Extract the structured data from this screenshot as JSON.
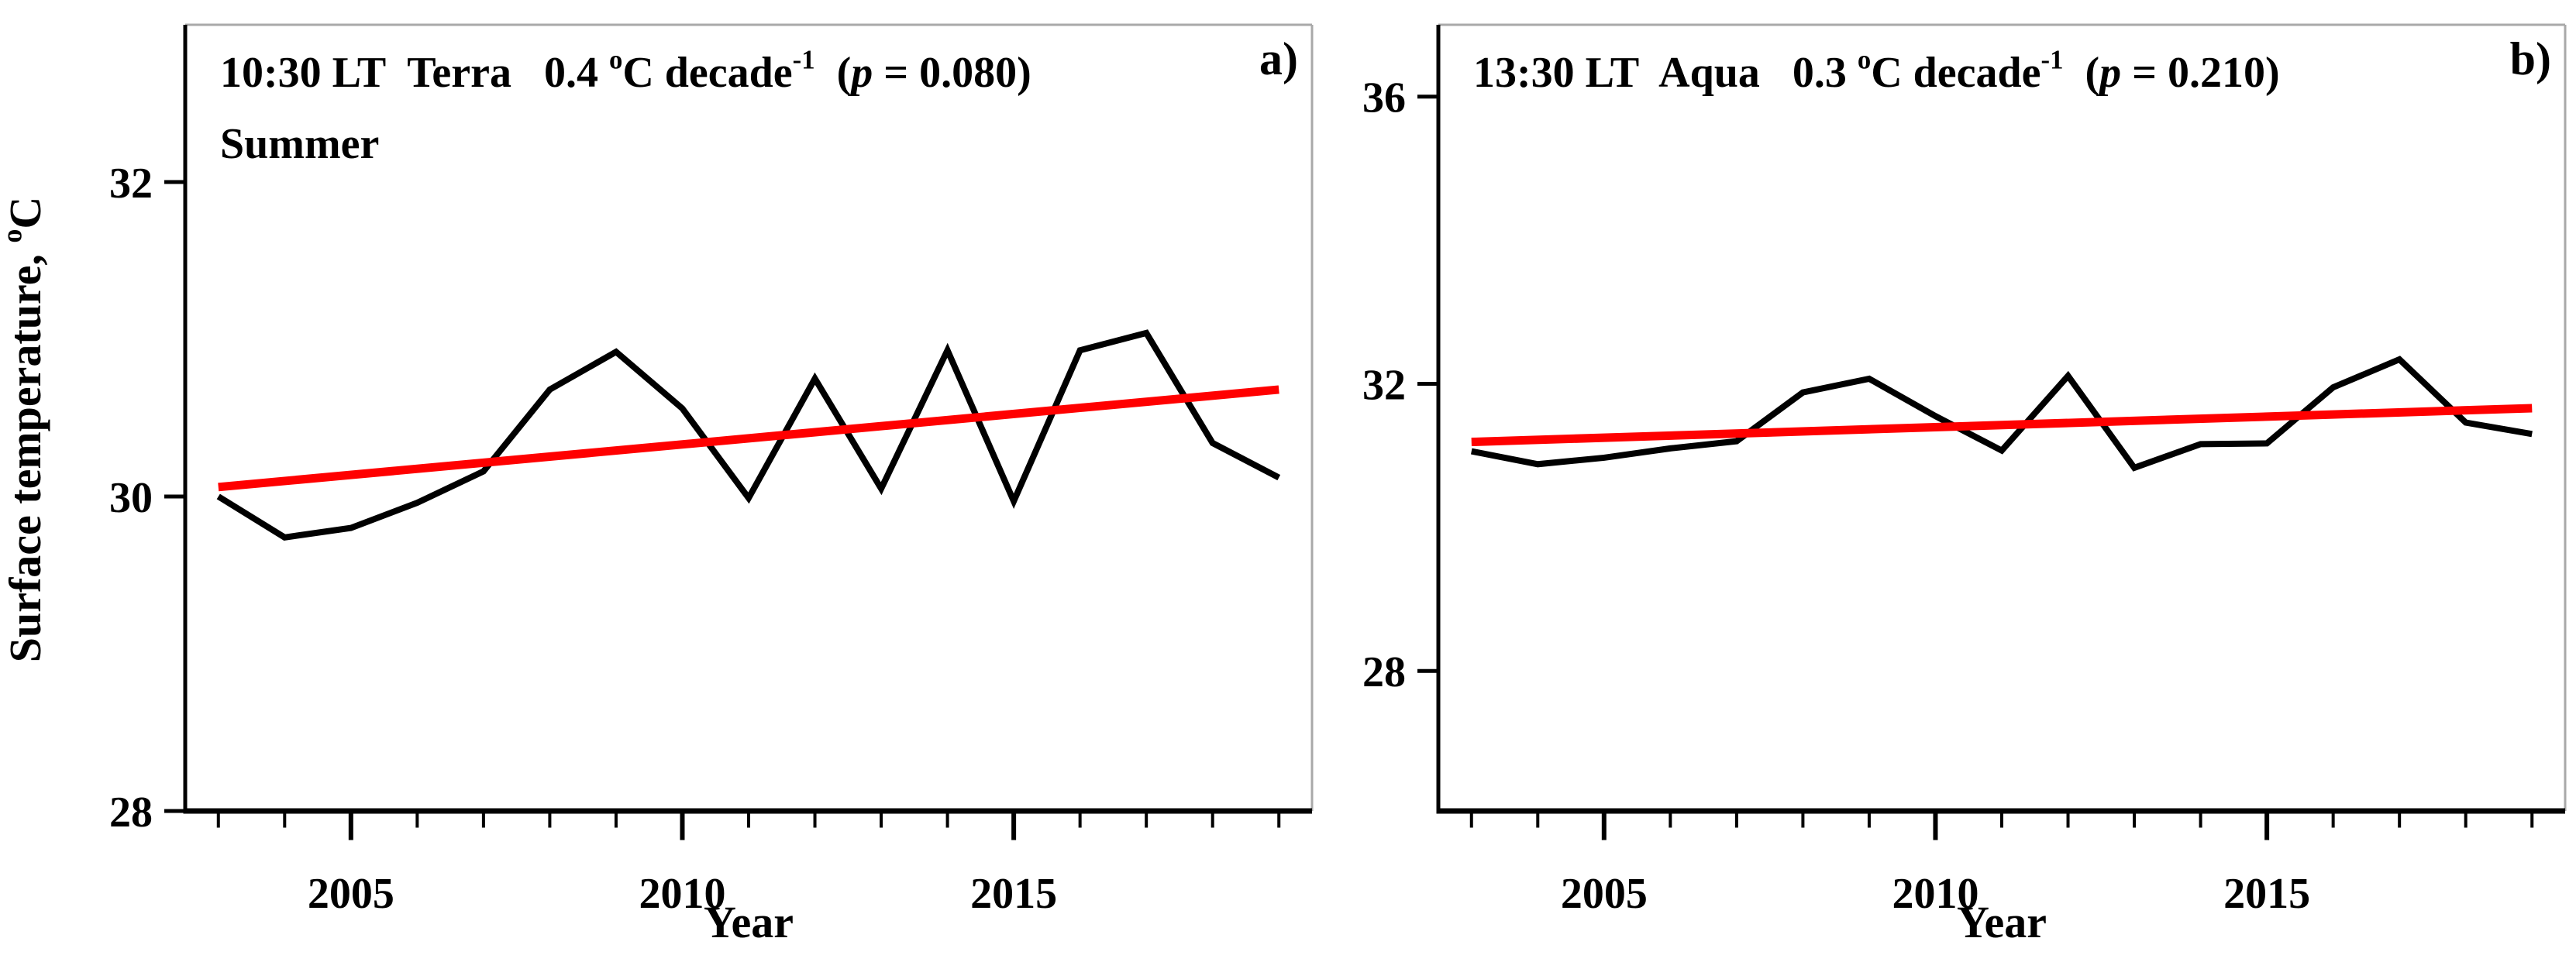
{
  "page": {
    "background": "#ffffff",
    "text_color": "#000000"
  },
  "chart_data": [
    {
      "type": "line",
      "panel_label": "a)",
      "annotation": {
        "line1_segments": [
          {
            "t": "10:30 LT  Terra   0.4 ",
            "s": "n"
          },
          {
            "t": "o",
            "s": "sup"
          },
          {
            "t": "C decade",
            "s": "n"
          },
          {
            "t": "-1",
            "s": "sup"
          },
          {
            "t": "  (",
            "s": "n"
          },
          {
            "t": "p",
            "s": "i"
          },
          {
            "t": " = 0.080)",
            "s": "n"
          }
        ],
        "line2": "Summer"
      },
      "local_time": "10:30 LT",
      "satellite": "Terra",
      "trend_c_per_decade": 0.4,
      "p_value": 0.08,
      "xlabel": "Year",
      "ylabel_segments": [
        {
          "t": "Surface temperature, ",
          "s": "n"
        },
        {
          "t": "o",
          "s": "sup"
        },
        {
          "t": "C",
          "s": "n"
        }
      ],
      "xlim": [
        2002.5,
        2019.5
      ],
      "ylim": [
        28,
        33.0
      ],
      "yticks": [
        28,
        30,
        32
      ],
      "xticks_minor": [
        2003,
        2004,
        2005,
        2006,
        2007,
        2008,
        2009,
        2010,
        2011,
        2012,
        2013,
        2014,
        2015,
        2016,
        2017,
        2018,
        2019
      ],
      "xticks_labeled": [
        2005,
        2010,
        2015
      ],
      "grid": false,
      "legend": null,
      "series": [
        {
          "name": "terra-surface-temperature",
          "color": "#000000",
          "x": [
            2003,
            2004,
            2005,
            2006,
            2007,
            2008,
            2009,
            2010,
            2011,
            2012,
            2013,
            2014,
            2015,
            2016,
            2017,
            2018,
            2019
          ],
          "y": [
            30.0,
            29.74,
            29.8,
            29.96,
            30.16,
            30.68,
            30.92,
            30.56,
            29.99,
            30.75,
            30.05,
            30.93,
            29.97,
            30.93,
            31.04,
            30.34,
            30.12
          ]
        },
        {
          "name": "terra-linear-trend",
          "color": "#ff0000",
          "x": [
            2003,
            2019
          ],
          "y": [
            30.06,
            30.68
          ]
        }
      ]
    },
    {
      "type": "line",
      "panel_label": "b)",
      "annotation": {
        "line1_segments": [
          {
            "t": "13:30 LT  Aqua   0.3 ",
            "s": "n"
          },
          {
            "t": "o",
            "s": "sup"
          },
          {
            "t": "C decade",
            "s": "n"
          },
          {
            "t": "-1",
            "s": "sup"
          },
          {
            "t": "  (",
            "s": "n"
          },
          {
            "t": "p",
            "s": "i"
          },
          {
            "t": " = 0.210)",
            "s": "n"
          }
        ],
        "line2": null
      },
      "local_time": "13:30 LT",
      "satellite": "Aqua",
      "trend_c_per_decade": 0.3,
      "p_value": 0.21,
      "xlabel": "Year",
      "ylabel_segments": null,
      "xlim": [
        2002.5,
        2019.5
      ],
      "ylim": [
        26.05,
        37.0
      ],
      "yticks": [
        28,
        32,
        36
      ],
      "xticks_minor": [
        2003,
        2004,
        2005,
        2006,
        2007,
        2008,
        2009,
        2010,
        2011,
        2012,
        2013,
        2014,
        2015,
        2016,
        2017,
        2018,
        2019
      ],
      "xticks_labeled": [
        2005,
        2010,
        2015
      ],
      "grid": false,
      "legend": null,
      "series": [
        {
          "name": "aqua-surface-temperature",
          "color": "#000000",
          "x": [
            2003,
            2004,
            2005,
            2006,
            2007,
            2008,
            2009,
            2010,
            2011,
            2012,
            2013,
            2014,
            2015,
            2016,
            2017,
            2018,
            2019
          ],
          "y": [
            31.06,
            30.88,
            30.97,
            31.1,
            31.2,
            31.88,
            32.07,
            31.55,
            31.07,
            32.11,
            30.83,
            31.16,
            31.17,
            31.95,
            32.34,
            31.46,
            31.3
          ]
        },
        {
          "name": "aqua-linear-trend",
          "color": "#ff0000",
          "x": [
            2003,
            2019
          ],
          "y": [
            31.19,
            31.66
          ]
        }
      ]
    }
  ]
}
